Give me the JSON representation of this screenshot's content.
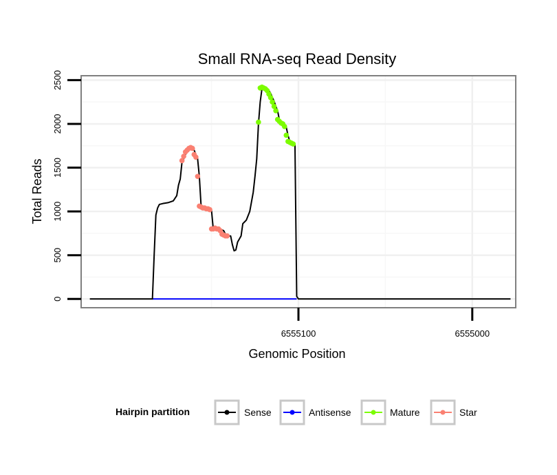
{
  "chart_data": {
    "type": "line",
    "title": "Small RNA-seq Read Density",
    "xlabel": "Genomic Position",
    "ylabel": "Total Reads",
    "x_reversed": true,
    "xlim": [
      6555225,
      6554975
    ],
    "ylim": [
      -100,
      2550
    ],
    "x_ticks": [
      6555100,
      6555000
    ],
    "x_tick_labels": [
      "6555100",
      "6555000"
    ],
    "y_ticks": [
      0,
      500,
      1000,
      1500,
      2000,
      2500
    ],
    "y_tick_labels": [
      "0",
      "500",
      "1000",
      "1500",
      "2000",
      "2500"
    ],
    "grid": true,
    "legend": {
      "title": "Hairpin partition",
      "position": "bottom",
      "entries": [
        {
          "name": "Sense",
          "color": "#000000"
        },
        {
          "name": "Antisense",
          "color": "#0000ff"
        },
        {
          "name": "Mature",
          "color": "#7cfc00"
        },
        {
          "name": "Star",
          "color": "#fa8072"
        }
      ]
    },
    "series": [
      {
        "name": "Sense",
        "color": "#000000",
        "points": [
          [
            6555220,
            0
          ],
          [
            6555184,
            0
          ],
          [
            6555183,
            500
          ],
          [
            6555182,
            960
          ],
          [
            6555181,
            1040
          ],
          [
            6555180,
            1080
          ],
          [
            6555178,
            1090
          ],
          [
            6555175,
            1100
          ],
          [
            6555172,
            1120
          ],
          [
            6555170,
            1180
          ],
          [
            6555169,
            1300
          ],
          [
            6555168,
            1370
          ],
          [
            6555167,
            1560
          ],
          [
            6555166,
            1600
          ],
          [
            6555165,
            1650
          ],
          [
            6555164,
            1680
          ],
          [
            6555163,
            1710
          ],
          [
            6555162,
            1720
          ],
          [
            6555161,
            1720
          ],
          [
            6555160,
            1700
          ],
          [
            6555159,
            1650
          ],
          [
            6555158,
            1600
          ],
          [
            6555157,
            1400
          ],
          [
            6555156,
            1060
          ],
          [
            6555155,
            1050
          ],
          [
            6555153,
            1040
          ],
          [
            6555151,
            1030
          ],
          [
            6555150,
            1010
          ],
          [
            6555149,
            800
          ],
          [
            6555147,
            800
          ],
          [
            6555145,
            800
          ],
          [
            6555143,
            780
          ],
          [
            6555142,
            740
          ],
          [
            6555141,
            730
          ],
          [
            6555140,
            720
          ],
          [
            6555139,
            720
          ],
          [
            6555138,
            620
          ],
          [
            6555137,
            550
          ],
          [
            6555136,
            560
          ],
          [
            6555135,
            650
          ],
          [
            6555133,
            720
          ],
          [
            6555132,
            860
          ],
          [
            6555131,
            880
          ],
          [
            6555130,
            900
          ],
          [
            6555128,
            1000
          ],
          [
            6555126,
            1220
          ],
          [
            6555125,
            1400
          ],
          [
            6555124,
            1600
          ],
          [
            6555123,
            2000
          ],
          [
            6555122,
            2250
          ],
          [
            6555121,
            2400
          ],
          [
            6555120,
            2420
          ],
          [
            6555119,
            2410
          ],
          [
            6555118,
            2400
          ],
          [
            6555117,
            2380
          ],
          [
            6555116,
            2350
          ],
          [
            6555115,
            2300
          ],
          [
            6555114,
            2260
          ],
          [
            6555113,
            2200
          ],
          [
            6555112,
            2150
          ],
          [
            6555111,
            2050
          ],
          [
            6555110,
            2030
          ],
          [
            6555109,
            2010
          ],
          [
            6555108,
            2000
          ],
          [
            6555107,
            1960
          ],
          [
            6555106,
            1870
          ],
          [
            6555105,
            1800
          ],
          [
            6555104,
            1790
          ],
          [
            6555103,
            1780
          ],
          [
            6555102,
            1770
          ],
          [
            6555101,
            30
          ],
          [
            6555100,
            0
          ],
          [
            6554978,
            0
          ]
        ]
      },
      {
        "name": "Antisense",
        "color": "#0000ff",
        "points": [
          [
            6555184,
            0
          ],
          [
            6555101,
            0
          ]
        ]
      },
      {
        "name": "Mature",
        "color": "#7cfc00",
        "points": [
          [
            6555123,
            2020
          ],
          [
            6555122,
            2410
          ],
          [
            6555121,
            2420
          ],
          [
            6555120,
            2410
          ],
          [
            6555119,
            2400
          ],
          [
            6555118,
            2380
          ],
          [
            6555117,
            2340
          ],
          [
            6555116,
            2300
          ],
          [
            6555115,
            2250
          ],
          [
            6555114,
            2200
          ],
          [
            6555113,
            2150
          ],
          [
            6555112,
            2050
          ],
          [
            6555111,
            2030
          ],
          [
            6555110,
            2010
          ],
          [
            6555109,
            2000
          ],
          [
            6555108,
            1970
          ],
          [
            6555107,
            1870
          ],
          [
            6555106,
            1800
          ],
          [
            6555105,
            1790
          ],
          [
            6555104,
            1780
          ],
          [
            6555103,
            1770
          ]
        ]
      },
      {
        "name": "Star",
        "color": "#fa8072",
        "points": [
          [
            6555167,
            1580
          ],
          [
            6555166,
            1630
          ],
          [
            6555165,
            1680
          ],
          [
            6555164,
            1700
          ],
          [
            6555163,
            1720
          ],
          [
            6555162,
            1730
          ],
          [
            6555161,
            1720
          ],
          [
            6555160,
            1650
          ],
          [
            6555159,
            1620
          ],
          [
            6555158,
            1400
          ],
          [
            6555157,
            1060
          ],
          [
            6555156,
            1050
          ],
          [
            6555155,
            1040
          ],
          [
            6555154,
            1040
          ],
          [
            6555153,
            1030
          ],
          [
            6555152,
            1030
          ],
          [
            6555151,
            1020
          ],
          [
            6555150,
            800
          ],
          [
            6555149,
            800
          ],
          [
            6555148,
            810
          ],
          [
            6555147,
            800
          ],
          [
            6555146,
            800
          ],
          [
            6555145,
            780
          ],
          [
            6555144,
            740
          ],
          [
            6555143,
            730
          ],
          [
            6555142,
            720
          ],
          [
            6555141,
            720
          ]
        ]
      }
    ]
  }
}
